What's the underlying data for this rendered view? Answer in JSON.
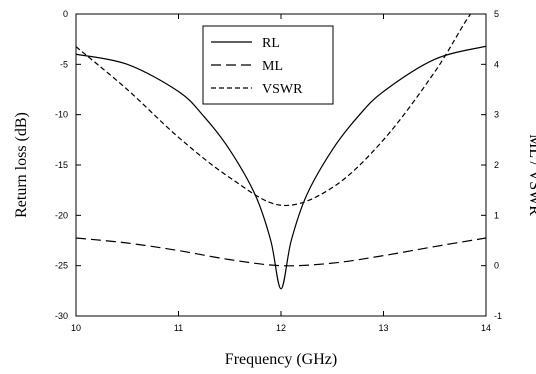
{
  "chart_data": {
    "type": "line",
    "xlabel": "Frequency (GHz)",
    "ylabel_left": "Return loss (dB)",
    "ylabel_right": "ML / VSWR",
    "xlim": [
      10,
      14
    ],
    "ylim_left": [
      -30,
      0
    ],
    "ylim_right": [
      -1,
      5
    ],
    "x_ticks": [
      "10",
      "11",
      "12",
      "13",
      "14"
    ],
    "y_ticks_left": [
      "0",
      "-5",
      "-10",
      "-15",
      "-20",
      "-25",
      "-30"
    ],
    "y_ticks_right": [
      "5",
      "4",
      "3",
      "2",
      "1",
      "0",
      "-1"
    ],
    "grid": false,
    "legend_position": "top-center",
    "series": [
      {
        "name": "RL",
        "axis": "left",
        "line_style": "solid",
        "x": [
          10.0,
          10.5,
          11.0,
          11.25,
          11.5,
          11.75,
          11.9,
          12.0,
          12.1,
          12.25,
          12.5,
          12.75,
          13.0,
          13.5,
          14.0
        ],
        "y": [
          -4.0,
          -5.0,
          -7.7,
          -10.2,
          -13.5,
          -18.0,
          -22.5,
          -27.3,
          -22.5,
          -18.0,
          -13.5,
          -10.2,
          -7.7,
          -4.5,
          -3.2
        ]
      },
      {
        "name": "ML",
        "axis": "right",
        "line_style": "long-dash",
        "x": [
          10.0,
          10.5,
          11.0,
          11.5,
          12.0,
          12.5,
          13.0,
          13.5,
          14.0
        ],
        "y": [
          0.55,
          0.45,
          0.3,
          0.12,
          0.0,
          0.05,
          0.2,
          0.38,
          0.55
        ]
      },
      {
        "name": "VSWR",
        "axis": "right",
        "line_style": "short-dash",
        "x": [
          10.0,
          10.5,
          11.0,
          11.5,
          12.0,
          12.5,
          13.0,
          13.5,
          13.85,
          14.0
        ],
        "y": [
          4.35,
          3.5,
          2.55,
          1.75,
          1.2,
          1.55,
          2.5,
          3.85,
          5.0,
          5.2
        ]
      }
    ]
  }
}
